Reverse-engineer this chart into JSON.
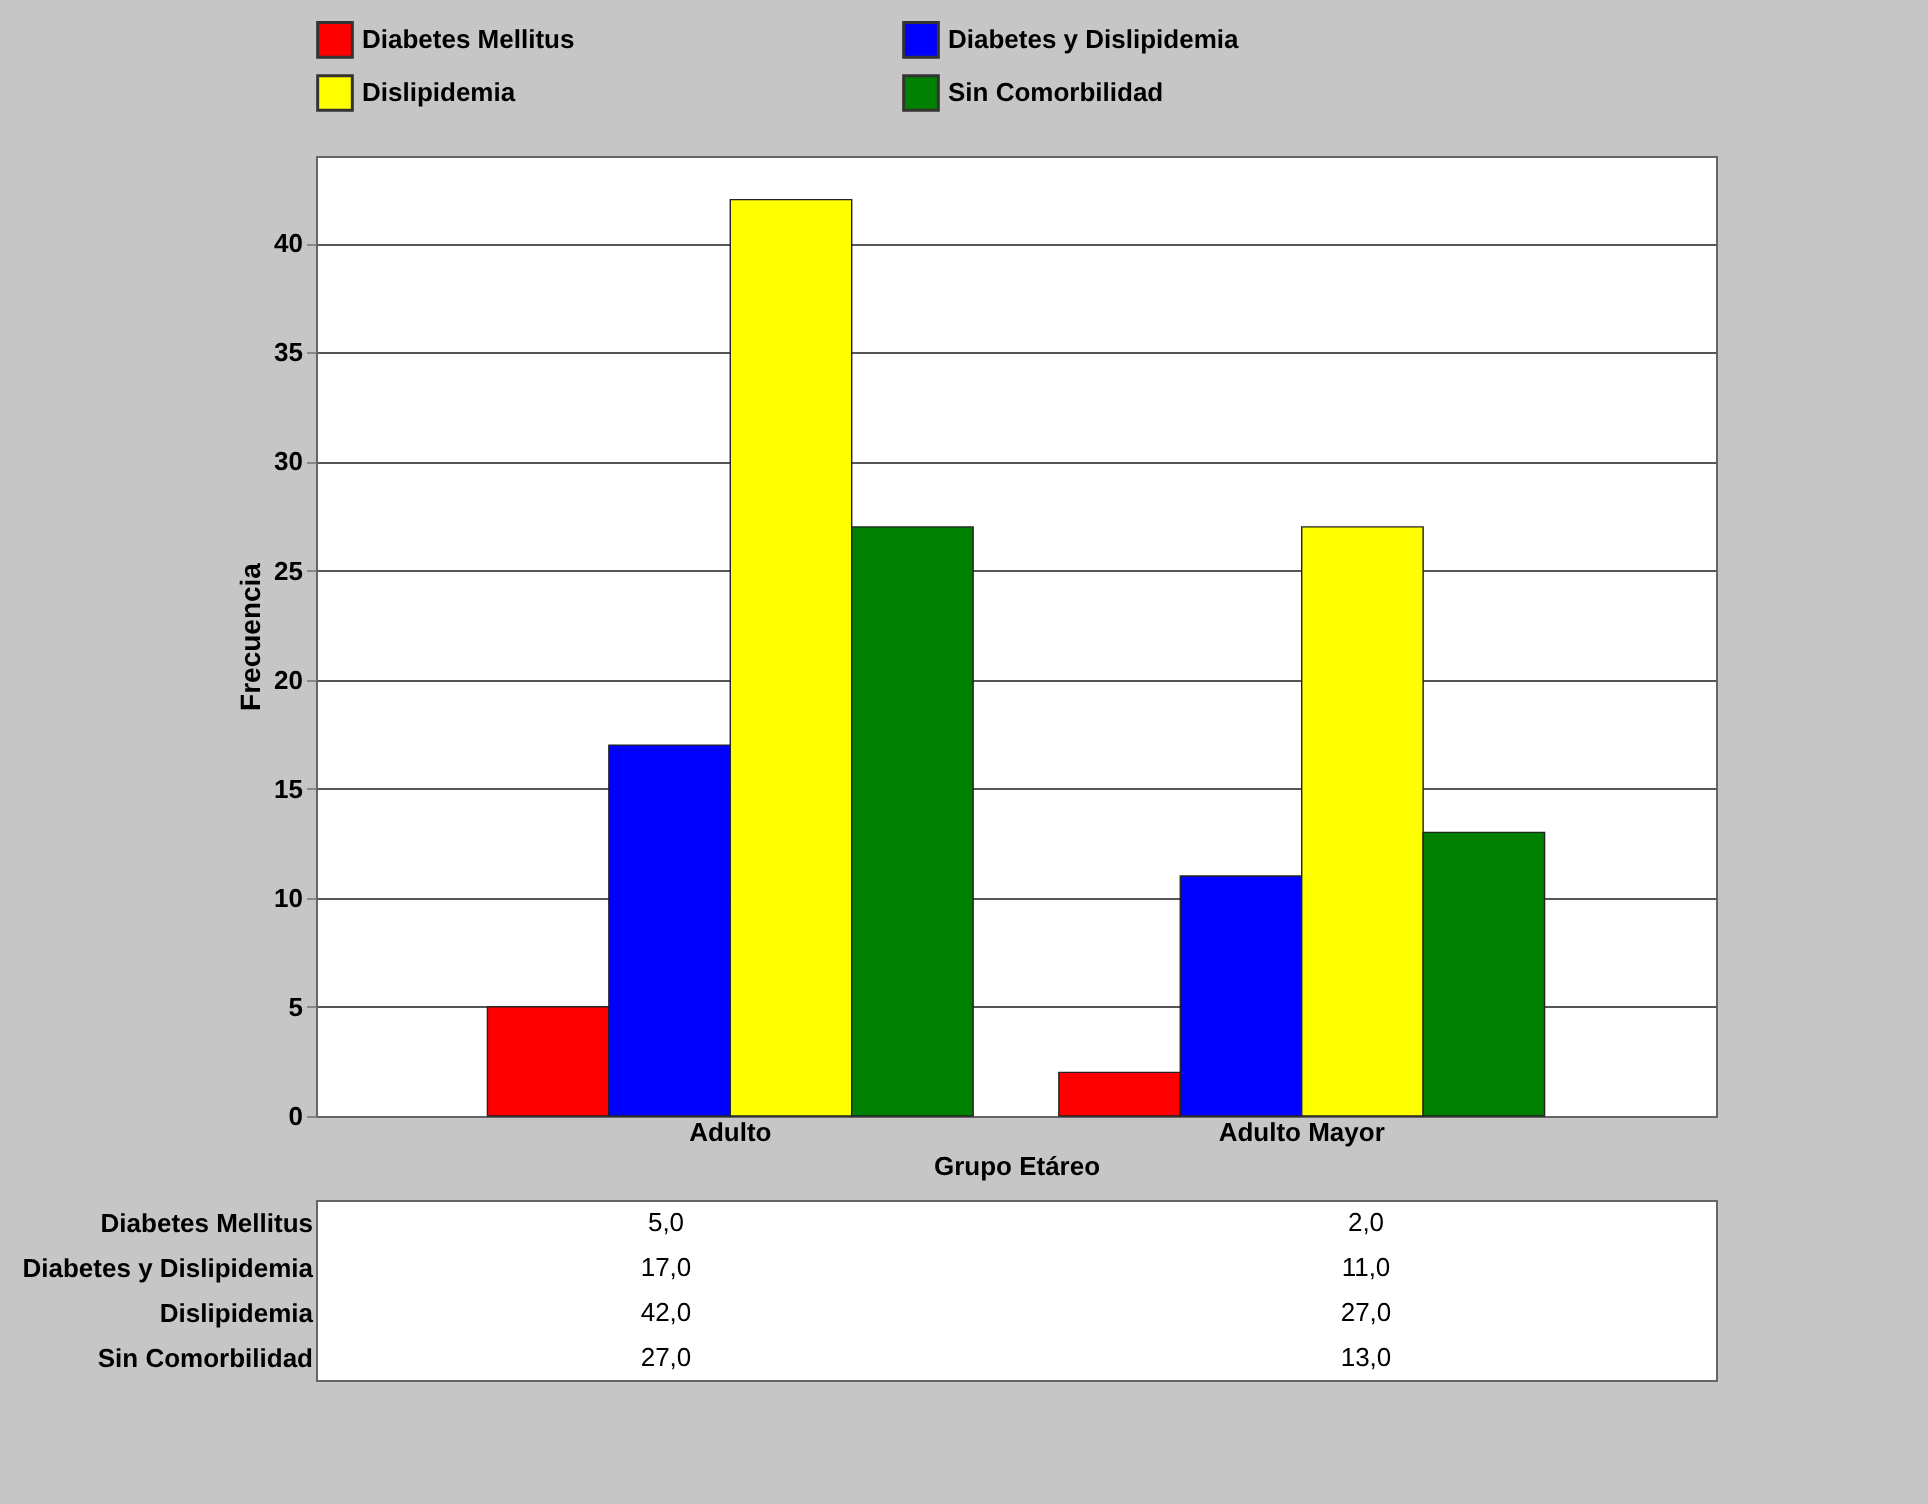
{
  "chart_data": {
    "type": "bar",
    "xlabel": "Grupo Etáreo",
    "ylabel": "Frecuencia",
    "categories": [
      "Adulto",
      "Adulto Mayor"
    ],
    "series": [
      {
        "name": "Diabetes Mellitus",
        "color": "#ff0000",
        "values": [
          5,
          2
        ],
        "value_labels": [
          "5,0",
          "2,0"
        ]
      },
      {
        "name": "Diabetes y Dislipidemia",
        "color": "#0000ff",
        "values": [
          17,
          11
        ],
        "value_labels": [
          "17,0",
          "11,0"
        ]
      },
      {
        "name": "Dislipidemia",
        "color": "#ffff00",
        "values": [
          42,
          27
        ],
        "value_labels": [
          "42,0",
          "27,0"
        ]
      },
      {
        "name": "Sin Comorbilidad",
        "color": "#008000",
        "values": [
          27,
          13
        ],
        "value_labels": [
          "27,0",
          "13,0"
        ]
      }
    ],
    "ylim": [
      0,
      44
    ],
    "yticks": [
      0,
      5,
      10,
      15,
      20,
      25,
      30,
      35,
      40
    ],
    "grid": "y",
    "legend": "top"
  }
}
